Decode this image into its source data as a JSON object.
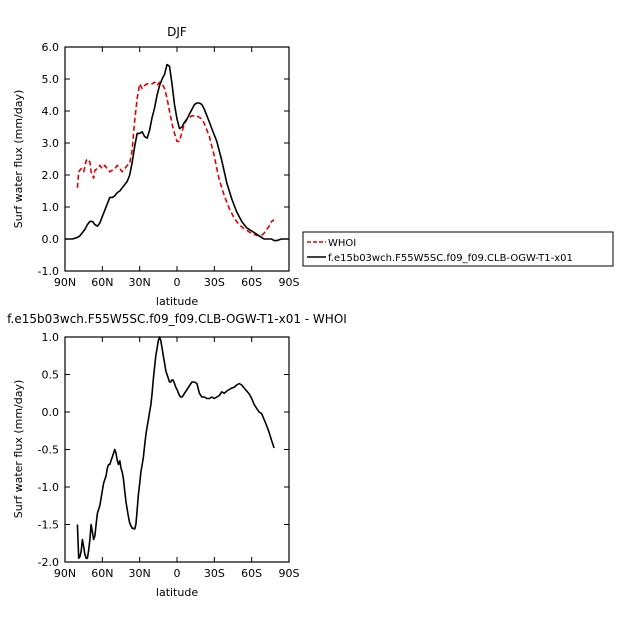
{
  "chart_data": [
    {
      "type": "line",
      "title": "DJF",
      "xlabel": "latitude",
      "ylabel": "Surf water flux (mm/day)",
      "xlim": [
        90,
        -90
      ],
      "ylim": [
        -1.0,
        6.0
      ],
      "x_ticks": [
        "90N",
        "60N",
        "30N",
        "0",
        "30S",
        "60S",
        "90S"
      ],
      "y_ticks": [
        "-1.0",
        "0.0",
        "1.0",
        "2.0",
        "3.0",
        "4.0",
        "5.0",
        "6.0"
      ],
      "legend_position": "right",
      "series": [
        {
          "name": "WHOI",
          "color": "#e00000",
          "style": "dashed",
          "x": [
            80,
            79,
            77,
            75,
            73,
            72,
            70,
            69,
            67,
            66,
            64,
            62,
            60,
            58,
            56,
            54,
            52,
            50,
            48,
            46,
            44,
            42,
            40,
            38,
            36,
            34,
            32,
            30,
            28,
            26,
            24,
            22,
            20,
            18,
            16,
            14,
            12,
            10,
            8,
            6,
            4,
            2,
            0,
            -2,
            -4,
            -6,
            -8,
            -10,
            -12,
            -14,
            -16,
            -18,
            -20,
            -22,
            -24,
            -26,
            -28,
            -30,
            -32,
            -34,
            -36,
            -38,
            -40,
            -42,
            -44,
            -46,
            -48,
            -50,
            -52,
            -54,
            -56,
            -58,
            -60,
            -62,
            -64,
            -66,
            -68,
            -70,
            -72,
            -74,
            -76,
            -78
          ],
          "y": [
            1.6,
            2.1,
            2.2,
            2.1,
            2.45,
            2.5,
            2.4,
            2.1,
            1.9,
            2.15,
            2.2,
            2.3,
            2.2,
            2.3,
            2.2,
            2.1,
            2.15,
            2.2,
            2.3,
            2.2,
            2.1,
            2.2,
            2.3,
            2.35,
            2.8,
            3.7,
            4.4,
            4.85,
            4.7,
            4.8,
            4.85,
            4.85,
            4.85,
            4.9,
            4.8,
            4.9,
            4.85,
            4.7,
            4.4,
            4.0,
            3.6,
            3.3,
            3.05,
            3.05,
            3.35,
            3.6,
            3.75,
            3.8,
            3.85,
            3.85,
            3.85,
            3.8,
            3.75,
            3.6,
            3.4,
            3.2,
            2.9,
            2.6,
            2.2,
            1.85,
            1.6,
            1.35,
            1.15,
            0.95,
            0.8,
            0.65,
            0.55,
            0.45,
            0.38,
            0.32,
            0.28,
            0.22,
            0.18,
            0.14,
            0.12,
            0.1,
            0.12,
            0.18,
            0.3,
            0.4,
            0.55,
            0.6
          ]
        },
        {
          "name": "f.e15b03wch.F55W5SC.f09_f09.CLB-OGW-T1-x01",
          "color": "#000000",
          "style": "solid",
          "x": [
            90,
            84,
            80,
            78,
            76,
            74,
            72,
            70,
            68,
            66,
            64,
            62,
            60,
            58,
            56,
            54,
            52,
            50,
            48,
            46,
            44,
            42,
            40,
            38,
            36,
            34,
            32,
            30,
            28,
            26,
            24,
            22,
            20,
            18,
            16,
            14,
            12,
            10,
            8,
            6,
            4,
            2,
            0,
            -2,
            -4,
            -6,
            -8,
            -10,
            -12,
            -14,
            -16,
            -18,
            -20,
            -22,
            -24,
            -26,
            -28,
            -30,
            -32,
            -34,
            -36,
            -38,
            -40,
            -42,
            -44,
            -46,
            -48,
            -50,
            -52,
            -54,
            -56,
            -58,
            -60,
            -62,
            -64,
            -66,
            -68,
            -70,
            -72,
            -74,
            -76,
            -78,
            -80,
            -84,
            -90
          ],
          "y": [
            0.0,
            0.0,
            0.05,
            0.1,
            0.2,
            0.3,
            0.45,
            0.55,
            0.55,
            0.45,
            0.4,
            0.5,
            0.7,
            0.9,
            1.1,
            1.3,
            1.3,
            1.35,
            1.45,
            1.5,
            1.6,
            1.7,
            1.8,
            2.0,
            2.4,
            2.9,
            3.3,
            3.3,
            3.35,
            3.2,
            3.15,
            3.4,
            3.8,
            4.1,
            4.5,
            4.8,
            5.0,
            5.15,
            5.45,
            5.4,
            4.85,
            4.2,
            3.75,
            3.45,
            3.5,
            3.65,
            3.75,
            3.9,
            4.05,
            4.2,
            4.25,
            4.25,
            4.2,
            4.05,
            3.85,
            3.65,
            3.45,
            3.25,
            3.05,
            2.75,
            2.45,
            2.1,
            1.75,
            1.5,
            1.25,
            1.05,
            0.85,
            0.7,
            0.55,
            0.45,
            0.35,
            0.3,
            0.25,
            0.2,
            0.15,
            0.1,
            0.05,
            0.0,
            0.0,
            0.0,
            0.0,
            -0.05,
            -0.05,
            0.0,
            0.0
          ]
        }
      ]
    },
    {
      "type": "line",
      "title": "f.e15b03wch.F55W5SC.f09_f09.CLB-OGW-T1-x01 - WHOI",
      "xlabel": "latitude",
      "ylabel": "Surf water flux (mm/day)",
      "xlim": [
        90,
        -90
      ],
      "ylim": [
        -2.0,
        1.0
      ],
      "x_ticks": [
        "90N",
        "60N",
        "30N",
        "0",
        "30S",
        "60S",
        "90S"
      ],
      "y_ticks": [
        "-2.0",
        "-1.5",
        "-1.0",
        "-0.5",
        "0.0",
        "0.5",
        "1.0"
      ],
      "series": [
        {
          "color": "#000000",
          "style": "solid",
          "x": [
            80,
            79,
            78,
            77,
            76,
            75,
            74,
            73,
            72,
            71,
            70,
            69,
            68,
            67,
            66,
            65,
            64,
            63,
            62,
            61,
            60,
            59,
            58,
            57,
            56,
            55,
            54,
            53,
            52,
            51,
            50,
            49,
            48,
            47,
            46,
            45,
            44,
            43,
            42,
            41,
            40,
            39,
            38,
            37,
            36,
            35,
            34,
            33,
            32,
            31,
            30,
            29,
            28,
            27,
            26,
            25,
            24,
            23,
            22,
            21,
            20,
            19,
            18,
            17,
            16,
            15,
            14,
            13,
            12,
            11,
            10,
            9,
            8,
            7,
            6,
            5,
            4,
            3,
            2,
            1,
            0,
            -1,
            -2,
            -3,
            -4,
            -5,
            -6,
            -8,
            -10,
            -12,
            -14,
            -16,
            -18,
            -20,
            -22,
            -24,
            -26,
            -28,
            -30,
            -32,
            -34,
            -36,
            -38,
            -40,
            -42,
            -44,
            -46,
            -48,
            -50,
            -52,
            -54,
            -56,
            -58,
            -60,
            -62,
            -64,
            -66,
            -68,
            -70,
            -72,
            -74,
            -76,
            -78
          ],
          "y": [
            -1.5,
            -1.95,
            -1.93,
            -1.85,
            -1.7,
            -1.8,
            -1.9,
            -1.95,
            -1.95,
            -1.85,
            -1.7,
            -1.5,
            -1.6,
            -1.7,
            -1.65,
            -1.5,
            -1.35,
            -1.3,
            -1.25,
            -1.15,
            -1.05,
            -0.95,
            -0.9,
            -0.85,
            -0.75,
            -0.7,
            -0.7,
            -0.65,
            -0.6,
            -0.55,
            -0.5,
            -0.55,
            -0.65,
            -0.7,
            -0.65,
            -0.75,
            -0.8,
            -0.9,
            -1.05,
            -1.2,
            -1.3,
            -1.4,
            -1.48,
            -1.52,
            -1.55,
            -1.55,
            -1.56,
            -1.5,
            -1.3,
            -1.1,
            -0.95,
            -0.8,
            -0.7,
            -0.6,
            -0.45,
            -0.3,
            -0.2,
            -0.1,
            0.0,
            0.1,
            0.25,
            0.45,
            0.6,
            0.75,
            0.85,
            0.95,
            1.0,
            0.95,
            0.85,
            0.75,
            0.65,
            0.55,
            0.5,
            0.45,
            0.4,
            0.4,
            0.43,
            0.42,
            0.38,
            0.33,
            0.3,
            0.26,
            0.22,
            0.2,
            0.2,
            0.22,
            0.25,
            0.3,
            0.35,
            0.4,
            0.4,
            0.38,
            0.25,
            0.2,
            0.2,
            0.18,
            0.18,
            0.2,
            0.18,
            0.2,
            0.22,
            0.27,
            0.25,
            0.28,
            0.3,
            0.32,
            0.33,
            0.36,
            0.38,
            0.36,
            0.32,
            0.28,
            0.24,
            0.18,
            0.1,
            0.05,
            0.0,
            -0.02,
            -0.1,
            -0.18,
            -0.27,
            -0.38,
            -0.48
          ]
        }
      ]
    }
  ]
}
